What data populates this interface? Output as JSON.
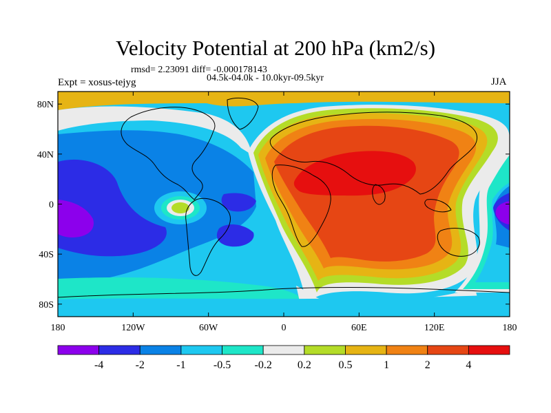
{
  "chart_data": {
    "type": "heatmap",
    "title": "Velocity Potential at 200 hPa (km2/s)",
    "subtitle": "04.5k-04.0k - 10.0kyr-09.5kyr",
    "annotations": {
      "rmsd": "rmsd= 2.23091 diff= -0.000178143",
      "experiment": "Expt = xosus-tejyg",
      "season": "JJA"
    },
    "x_axis": {
      "range": [
        -180,
        180
      ],
      "ticks": [
        -180,
        -120,
        -60,
        0,
        60,
        120,
        180
      ],
      "tick_labels": [
        "180",
        "120W",
        "60W",
        "0",
        "60E",
        "120E",
        "180"
      ]
    },
    "y_axis": {
      "range": [
        -90,
        90
      ],
      "ticks": [
        80,
        40,
        0,
        -40,
        -80
      ],
      "tick_labels": [
        "80N",
        "40N",
        "0",
        "40S",
        "80S"
      ]
    },
    "colorbar": {
      "colors": [
        "#8c00ec",
        "#2c2ce6",
        "#0a82e6",
        "#1ec8f0",
        "#1ee6c8",
        "#ebebeb",
        "#b4dc28",
        "#e6b414",
        "#f08214",
        "#e64614",
        "#e60f0f"
      ],
      "boundaries": [
        "-4",
        "-2",
        "-1",
        "-0.5",
        "-0.2",
        "0.2",
        "0.5",
        "1",
        "2",
        "4"
      ]
    }
  }
}
